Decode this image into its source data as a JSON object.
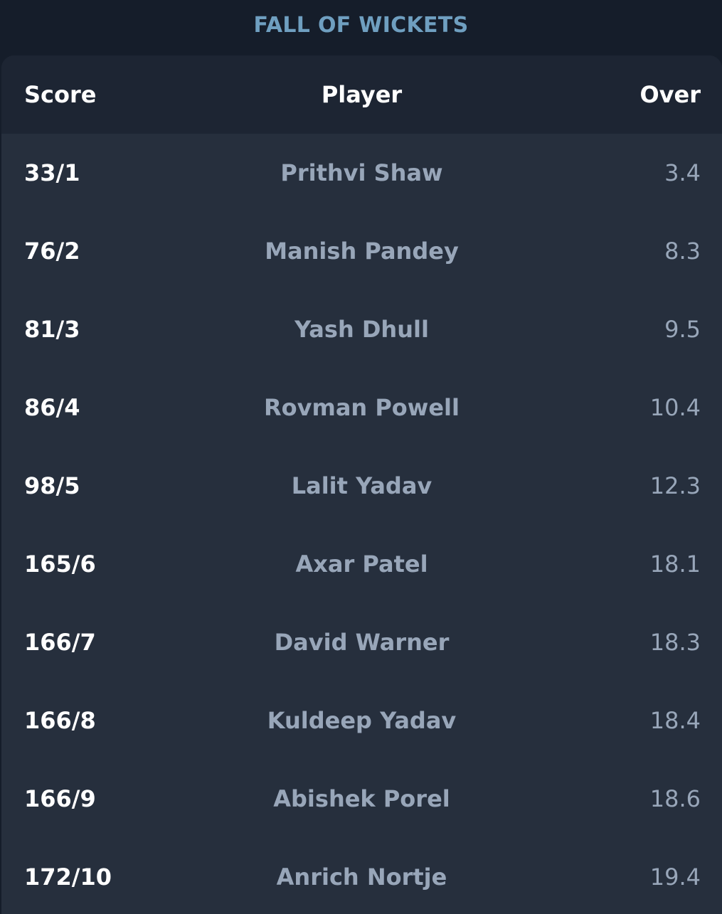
{
  "section_title": "FALL OF WICKETS",
  "table": {
    "headers": {
      "score": "Score",
      "player": "Player",
      "over": "Over"
    },
    "rows": [
      {
        "score": "33/1",
        "player": "Prithvi Shaw",
        "over": "3.4"
      },
      {
        "score": "76/2",
        "player": "Manish Pandey",
        "over": "8.3"
      },
      {
        "score": "81/3",
        "player": "Yash Dhull",
        "over": "9.5"
      },
      {
        "score": "86/4",
        "player": "Rovman Powell",
        "over": "10.4"
      },
      {
        "score": "98/5",
        "player": "Lalit Yadav",
        "over": "12.3"
      },
      {
        "score": "165/6",
        "player": "Axar Patel",
        "over": "18.1"
      },
      {
        "score": "166/7",
        "player": "David Warner",
        "over": "18.3"
      },
      {
        "score": "166/8",
        "player": "Kuldeep Yadav",
        "over": "18.4"
      },
      {
        "score": "166/9",
        "player": "Abishek Porel",
        "over": "18.6"
      },
      {
        "score": "172/10",
        "player": "Anrich Nortje",
        "over": "19.4"
      }
    ]
  },
  "colors": {
    "page_background": "#151d2a",
    "card_background": "#262f3d",
    "header_background": "#1d2533",
    "title_color": "#6f9fc0",
    "score_color": "#ffffff",
    "muted_text": "#98a6b9"
  }
}
